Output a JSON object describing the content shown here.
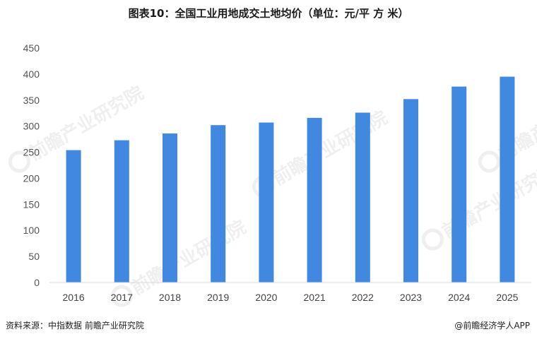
{
  "chart_data": {
    "type": "bar",
    "title": "图表10：全国工业用地成交土地均价（单位：元/平 方 米）",
    "categories": [
      "2016",
      "2017",
      "2018",
      "2019",
      "2020",
      "2021",
      "2022",
      "2023",
      "2024",
      "2025"
    ],
    "values": [
      254,
      273,
      286,
      302,
      307,
      316,
      326,
      352,
      376,
      395
    ],
    "ylim": [
      0,
      450
    ],
    "yticks": [
      0,
      50,
      100,
      150,
      200,
      250,
      300,
      350,
      400,
      450
    ],
    "grid": false,
    "legend": "none",
    "bar_color": "#4188e0"
  },
  "footer": {
    "source": "资料来源：中指数据  前瞻产业研究院",
    "credit": "@前瞻经济学人APP"
  },
  "watermark": {
    "text": "前瞻产业研究院",
    "icon": "qianzhan-logo-icon"
  }
}
